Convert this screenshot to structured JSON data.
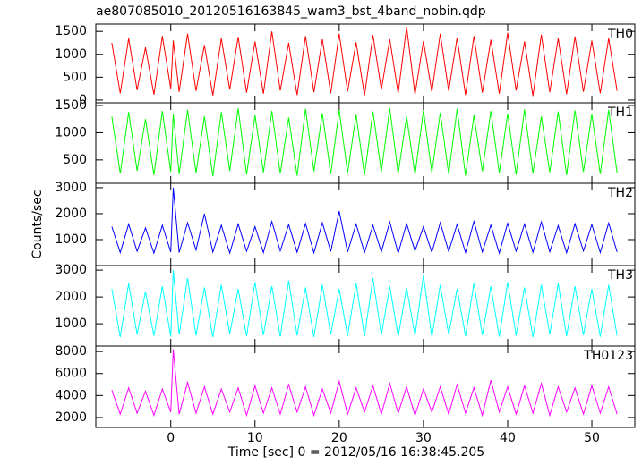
{
  "chart_data": [
    {
      "type": "line",
      "title": "ae807085010_20120516163845_wam3_bst_4band_nobin.qdp",
      "label": "TH0",
      "color": "#ff0000",
      "x": [
        -7,
        -6,
        -5,
        -4,
        -3,
        -2,
        -1,
        0,
        0.3,
        1,
        2,
        3,
        4,
        5,
        6,
        7,
        8,
        9,
        10,
        11,
        12,
        13,
        14,
        15,
        16,
        17,
        18,
        19,
        20,
        21,
        22,
        23,
        24,
        25,
        26,
        27,
        28,
        29,
        30,
        31,
        32,
        33,
        34,
        35,
        36,
        37,
        38,
        39,
        40,
        41,
        42,
        43,
        44,
        45,
        46,
        47,
        48,
        49,
        50,
        51,
        52,
        53
      ],
      "values": [
        1250,
        150,
        1350,
        220,
        1150,
        120,
        1400,
        250,
        1300,
        180,
        1450,
        200,
        1200,
        100,
        1350,
        230,
        1380,
        160,
        1280,
        140,
        1500,
        210,
        1250,
        110,
        1400,
        170,
        1330,
        150,
        1450,
        190,
        1260,
        100,
        1420,
        230,
        1330,
        150,
        1600,
        120,
        1290,
        180,
        1450,
        200,
        1360,
        110,
        1400,
        160,
        1320,
        140,
        1470,
        210,
        1280,
        90,
        1430,
        170,
        1350,
        130,
        1390,
        180,
        1300,
        150,
        1350,
        200
      ],
      "xlim": [
        -8.9,
        55.1
      ],
      "xticks": [
        0,
        10,
        20,
        30,
        40,
        50
      ],
      "ylim": [
        -60,
        1660
      ],
      "yticks": [
        0,
        500,
        1000,
        1500
      ]
    },
    {
      "type": "line",
      "label": "TH1",
      "color": "#00ff00",
      "x": [
        -7,
        -6,
        -5,
        -4,
        -3,
        -2,
        -1,
        0,
        0.3,
        1,
        2,
        3,
        4,
        5,
        6,
        7,
        8,
        9,
        10,
        11,
        12,
        13,
        14,
        15,
        16,
        17,
        18,
        19,
        20,
        21,
        22,
        23,
        24,
        25,
        26,
        27,
        28,
        29,
        30,
        31,
        32,
        33,
        34,
        35,
        36,
        37,
        38,
        39,
        40,
        41,
        42,
        43,
        44,
        45,
        46,
        47,
        48,
        49,
        50,
        51,
        52,
        53
      ],
      "values": [
        1300,
        250,
        1380,
        300,
        1250,
        220,
        1400,
        280,
        1350,
        240,
        1420,
        260,
        1300,
        200,
        1380,
        300,
        1450,
        230,
        1320,
        270,
        1400,
        250,
        1280,
        210,
        1440,
        290,
        1360,
        240,
        1420,
        260,
        1330,
        220,
        1390,
        280,
        1450,
        250,
        1300,
        230,
        1410,
        270,
        1370,
        240,
        1440,
        210,
        1320,
        290,
        1400,
        260,
        1350,
        230,
        1430,
        250,
        1300,
        270,
        1390,
        220,
        1410,
        280,
        1340,
        240,
        1420,
        260
      ],
      "xlim": [
        -8.9,
        55.1
      ],
      "xticks": [
        0,
        10,
        20,
        30,
        40,
        50
      ],
      "ylim": [
        70,
        1550
      ],
      "yticks": [
        500,
        1000,
        1500
      ]
    },
    {
      "type": "line",
      "label": "TH2",
      "color": "#0000ff",
      "ylabel": "Counts/sec",
      "x": [
        -7,
        -6,
        -5,
        -4,
        -3,
        -2,
        -1,
        0,
        0.3,
        1,
        2,
        3,
        4,
        5,
        6,
        7,
        8,
        9,
        10,
        11,
        12,
        13,
        14,
        15,
        16,
        17,
        18,
        19,
        20,
        21,
        22,
        23,
        24,
        25,
        26,
        27,
        28,
        29,
        30,
        31,
        32,
        33,
        34,
        35,
        36,
        37,
        38,
        39,
        40,
        41,
        42,
        43,
        44,
        45,
        46,
        47,
        48,
        49,
        50,
        51,
        52,
        53
      ],
      "values": [
        1500,
        500,
        1600,
        550,
        1450,
        480,
        1550,
        520,
        3000,
        500,
        1650,
        600,
        2000,
        520,
        1550,
        480,
        1600,
        550,
        1500,
        500,
        1700,
        560,
        1580,
        510,
        1620,
        490,
        1650,
        540,
        2100,
        520,
        1600,
        500,
        1550,
        530,
        1680,
        480,
        1620,
        560,
        1500,
        510,
        1650,
        540,
        1590,
        500,
        1700,
        520,
        1560,
        480,
        1630,
        550,
        1600,
        510,
        1680,
        530,
        1540,
        490,
        1610,
        560,
        1580,
        500,
        1640,
        520
      ],
      "xlim": [
        -8.9,
        55.1
      ],
      "xticks": [
        0,
        10,
        20,
        30,
        40,
        50
      ],
      "ylim": [
        0,
        3170
      ],
      "yticks": [
        1000,
        2000,
        3000
      ]
    },
    {
      "type": "line",
      "label": "TH3",
      "color": "#00ffff",
      "x": [
        -7,
        -6,
        -5,
        -4,
        -3,
        -2,
        -1,
        0,
        0.3,
        1,
        2,
        3,
        4,
        5,
        6,
        7,
        8,
        9,
        10,
        11,
        12,
        13,
        14,
        15,
        16,
        17,
        18,
        19,
        20,
        21,
        22,
        23,
        24,
        25,
        26,
        27,
        28,
        29,
        30,
        31,
        32,
        33,
        34,
        35,
        36,
        37,
        38,
        39,
        40,
        41,
        42,
        43,
        44,
        45,
        46,
        47,
        48,
        49,
        50,
        51,
        52,
        53
      ],
      "values": [
        2300,
        500,
        2500,
        600,
        2200,
        550,
        2400,
        520,
        3000,
        600,
        2700,
        560,
        2350,
        500,
        2450,
        620,
        2300,
        540,
        2550,
        580,
        2400,
        520,
        2600,
        560,
        2350,
        500,
        2450,
        600,
        2300,
        550,
        2500,
        540,
        2700,
        580,
        2400,
        520,
        2350,
        560,
        2800,
        500,
        2450,
        600,
        2300,
        540,
        2500,
        580,
        2400,
        520,
        2550,
        560,
        2350,
        500,
        2450,
        600,
        2500,
        540,
        2400,
        580,
        2300,
        520,
        2450,
        560
      ],
      "xlim": [
        -8.9,
        55.1
      ],
      "xticks": [
        0,
        10,
        20,
        30,
        40,
        50
      ],
      "ylim": [
        170,
        3170
      ],
      "yticks": [
        1000,
        2000,
        3000
      ]
    },
    {
      "type": "line",
      "label": "TH0123",
      "color": "#ff00ff",
      "xlabel": "Time [sec] 0 = 2012/05/16 16:38:45.205",
      "x": [
        -7,
        -6,
        -5,
        -4,
        -3,
        -2,
        -1,
        0,
        0.3,
        1,
        2,
        3,
        4,
        5,
        6,
        7,
        8,
        9,
        10,
        11,
        12,
        13,
        14,
        15,
        16,
        17,
        18,
        19,
        20,
        21,
        22,
        23,
        24,
        25,
        26,
        27,
        28,
        29,
        30,
        31,
        32,
        33,
        34,
        35,
        36,
        37,
        38,
        39,
        40,
        41,
        42,
        43,
        44,
        45,
        46,
        47,
        48,
        49,
        50,
        51,
        52,
        53
      ],
      "values": [
        4500,
        2300,
        4700,
        2400,
        4400,
        2200,
        4600,
        2500,
        8200,
        2300,
        5200,
        2400,
        4800,
        2300,
        4600,
        2500,
        4700,
        2200,
        4900,
        2400,
        4700,
        2300,
        5000,
        2500,
        4800,
        2200,
        4600,
        2400,
        5300,
        2300,
        4700,
        2500,
        4900,
        2300,
        5100,
        2400,
        4800,
        2200,
        4600,
        2500,
        4800,
        2300,
        5000,
        2400,
        4700,
        2200,
        5400,
        2500,
        4800,
        2300,
        4900,
        2400,
        5100,
        2200,
        4800,
        2500,
        4700,
        2300,
        4900,
        2400,
        4800,
        2300
      ],
      "xlim": [
        -8.9,
        55.1
      ],
      "xticks": [
        0,
        10,
        20,
        30,
        40,
        50
      ],
      "ylim": [
        1100,
        8500
      ],
      "yticks": [
        2000,
        4000,
        6000,
        8000
      ]
    }
  ]
}
